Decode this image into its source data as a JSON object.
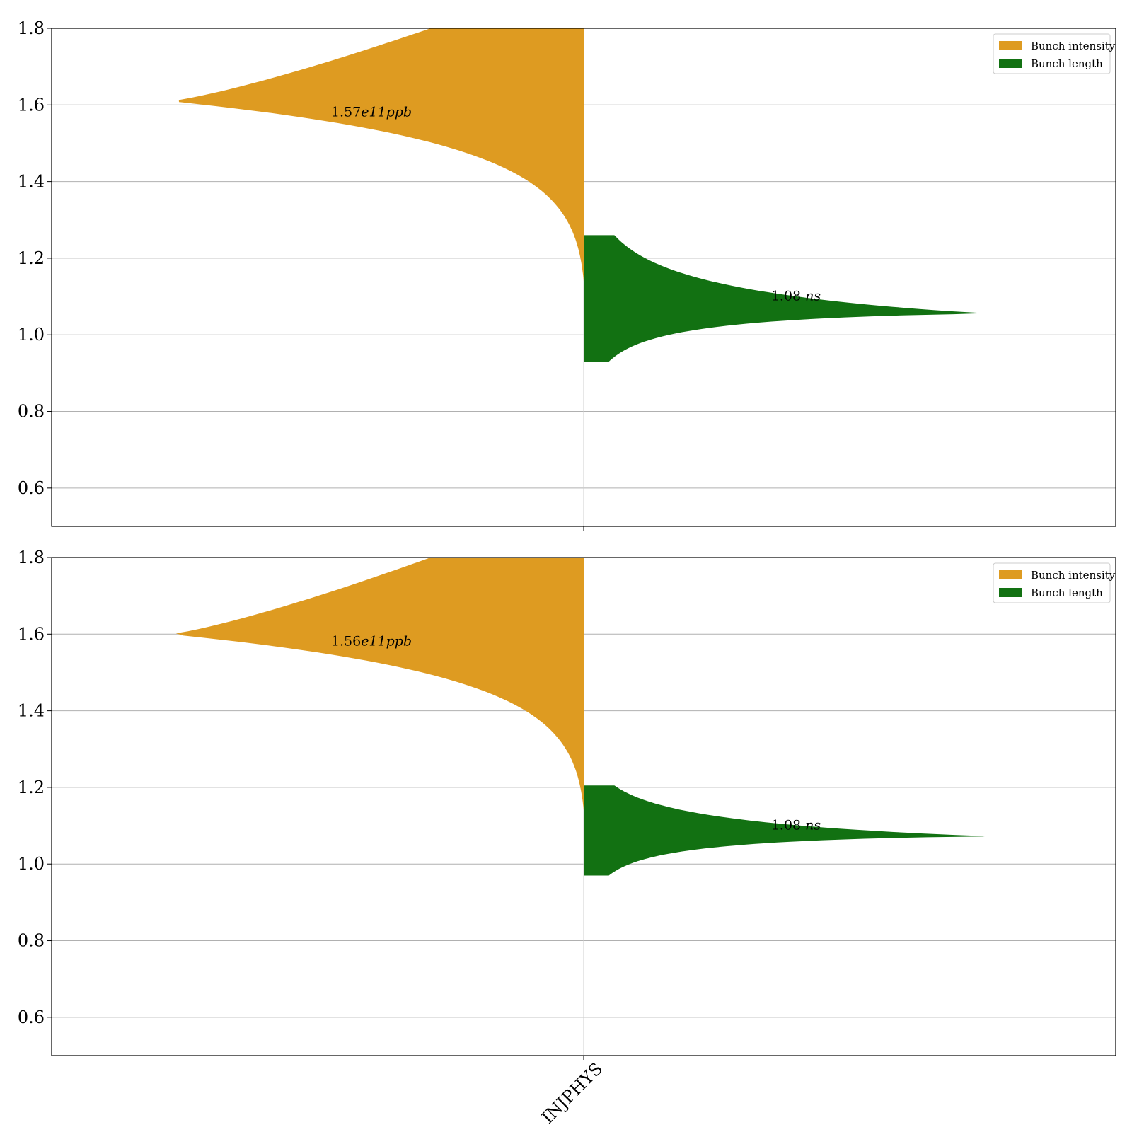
{
  "chart_data": [
    {
      "type": "split-violin",
      "category": "INJPHYS",
      "ylim": [
        0.5,
        1.8
      ],
      "yticks": [
        "0.6",
        "0.8",
        "1.0",
        "1.2",
        "1.4",
        "1.6",
        "1.8"
      ],
      "grid": true,
      "legend_position": "top-right",
      "series": [
        {
          "name": "Bunch intensity",
          "side": "left",
          "color": "#DE9B21",
          "y_min": 1.14,
          "y_max": 1.8,
          "mode": 1.61,
          "label_main": "1.57",
          "label_tail": "e11ppb",
          "annotation_y": 1.57
        },
        {
          "name": "Bunch length",
          "side": "right",
          "color": "#127112",
          "y_min": 0.93,
          "y_max": 1.26,
          "mode": 1.055,
          "label_main": "1.08 ",
          "label_tail": "ns",
          "annotation_y": 1.09
        }
      ]
    },
    {
      "type": "split-violin",
      "category": "INJPHYS",
      "ylim": [
        0.5,
        1.8
      ],
      "yticks": [
        "0.6",
        "0.8",
        "1.0",
        "1.2",
        "1.4",
        "1.6",
        "1.8"
      ],
      "grid": true,
      "legend_position": "top-right",
      "series": [
        {
          "name": "Bunch intensity",
          "side": "left",
          "color": "#DE9B21",
          "y_min": 1.14,
          "y_max": 1.8,
          "mode": 1.6,
          "label_main": "1.56",
          "label_tail": "e11ppb",
          "annotation_y": 1.57
        },
        {
          "name": "Bunch length",
          "side": "right",
          "color": "#127112",
          "y_min": 0.97,
          "y_max": 1.205,
          "mode": 1.072,
          "label_main": "1.08 ",
          "label_tail": "ns",
          "annotation_y": 1.09
        }
      ]
    }
  ],
  "xtick_label": "INJPHYS"
}
